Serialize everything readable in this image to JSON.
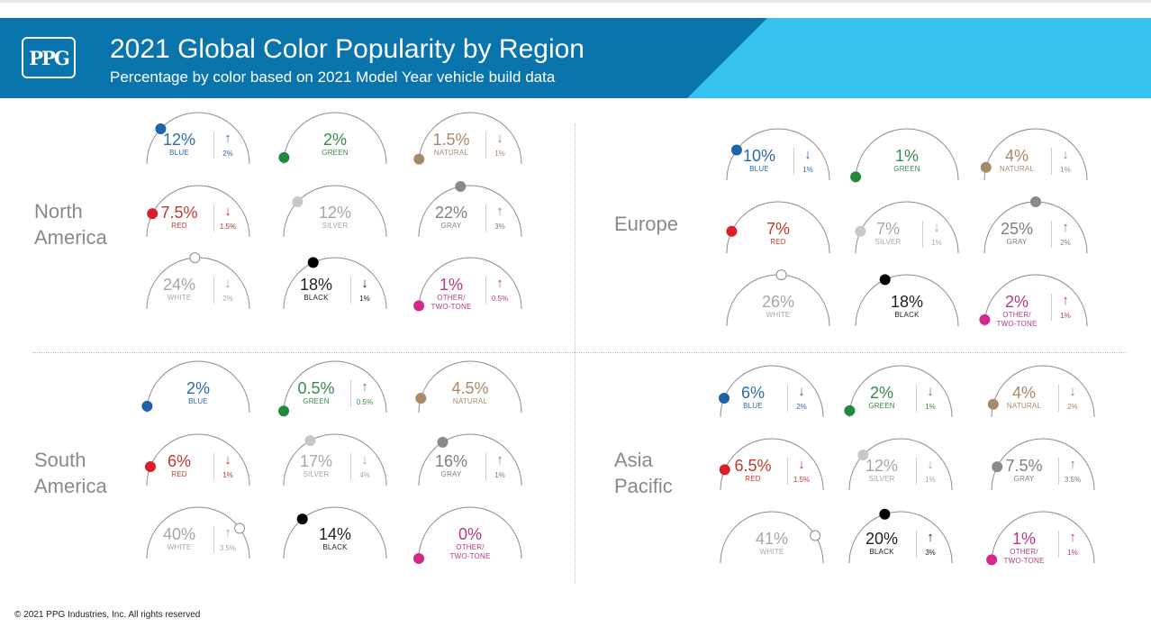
{
  "header": {
    "logo_text": "PPG",
    "title": "2021 Global Color Popularity by Region",
    "subtitle": "Percentage by color based on 2021 Model Year vehicle build data",
    "dark_color": "#0a74ac",
    "light_color": "#36c2ee"
  },
  "footer": {
    "copyright": "© 2021 PPG Industries, Inc. All rights reserved"
  },
  "chart_data": [
    {
      "type": "gauge",
      "region": "North\nAmerica",
      "items": [
        {
          "color": "BLUE",
          "value": 12,
          "value_label": "12%",
          "trend": "↑",
          "change": "2%",
          "hex": "#2f6aa9",
          "dot": "#1f63aa"
        },
        {
          "color": "GREEN",
          "value": 2,
          "value_label": "2%",
          "trend": "",
          "change": "",
          "hex": "#3a8a4e",
          "dot": "#218a3c"
        },
        {
          "color": "NATURAL",
          "value": 1.5,
          "value_label": "1.5%",
          "trend": "↓",
          "change": "1%",
          "hex": "#a88a6a",
          "dot": "#a88a6a"
        },
        {
          "color": "RED",
          "value": 7.5,
          "value_label": "7.5%",
          "trend": "↓",
          "change": "1.5%",
          "hex": "#c0392b",
          "dot": "#d81f2a"
        },
        {
          "color": "SILVER",
          "value": 12,
          "value_label": "12%",
          "trend": "",
          "change": "",
          "hex": "#a6a6a6",
          "dot": "#c7c7c7"
        },
        {
          "color": "GRAY",
          "value": 22,
          "value_label": "22%",
          "trend": "↑",
          "change": "3%",
          "hex": "#7f7f7f",
          "dot": "#8a8a8a"
        },
        {
          "color": "WHITE",
          "value": 24,
          "value_label": "24%",
          "trend": "↓",
          "change": "2%",
          "hex": "#a6a6a6",
          "dot": "#ffffff"
        },
        {
          "color": "BLACK",
          "value": 18,
          "value_label": "18%",
          "trend": "↓",
          "change": "1%",
          "hex": "#222222",
          "dot": "#000000"
        },
        {
          "color": "OTHER/\nTWO-TONE",
          "value": 1,
          "value_label": "1%",
          "trend": "↑",
          "change": "0.5%",
          "hex": "#b03a86",
          "dot": "#d6278a"
        }
      ]
    },
    {
      "type": "gauge",
      "region": "Europe",
      "items": [
        {
          "color": "BLUE",
          "value": 10,
          "value_label": "10%",
          "trend": "↓",
          "change": "1%",
          "hex": "#2f6aa9",
          "dot": "#1f63aa"
        },
        {
          "color": "GREEN",
          "value": 1,
          "value_label": "1%",
          "trend": "",
          "change": "",
          "hex": "#3a8a4e",
          "dot": "#218a3c"
        },
        {
          "color": "NATURAL",
          "value": 4,
          "value_label": "4%",
          "trend": "↓",
          "change": "1%",
          "hex": "#a88a6a",
          "dot": "#a88a6a"
        },
        {
          "color": "RED",
          "value": 7,
          "value_label": "7%",
          "trend": "",
          "change": "",
          "hex": "#c0392b",
          "dot": "#d81f2a"
        },
        {
          "color": "SILVER",
          "value": 7,
          "value_label": "7%",
          "trend": "↓",
          "change": "1%",
          "hex": "#a6a6a6",
          "dot": "#c7c7c7"
        },
        {
          "color": "GRAY",
          "value": 25,
          "value_label": "25%",
          "trend": "↑",
          "change": "2%",
          "hex": "#7f7f7f",
          "dot": "#8a8a8a"
        },
        {
          "color": "WHITE",
          "value": 26,
          "value_label": "26%",
          "trend": "",
          "change": "",
          "hex": "#a6a6a6",
          "dot": "#ffffff"
        },
        {
          "color": "BLACK",
          "value": 18,
          "value_label": "18%",
          "trend": "",
          "change": "",
          "hex": "#222222",
          "dot": "#000000"
        },
        {
          "color": "OTHER/\nTWO-TONE",
          "value": 2,
          "value_label": "2%",
          "trend": "↑",
          "change": "1%",
          "hex": "#b03a86",
          "dot": "#d6278a"
        }
      ]
    },
    {
      "type": "gauge",
      "region": "South\nAmerica",
      "items": [
        {
          "color": "BLUE",
          "value": 2,
          "value_label": "2%",
          "trend": "",
          "change": "",
          "hex": "#2f6aa9",
          "dot": "#1f63aa"
        },
        {
          "color": "GREEN",
          "value": 0.5,
          "value_label": "0.5%",
          "trend": "↑",
          "change": "0.5%",
          "hex": "#3a8a4e",
          "dot": "#218a3c"
        },
        {
          "color": "NATURAL",
          "value": 4.5,
          "value_label": "4.5%",
          "trend": "",
          "change": "",
          "hex": "#a88a6a",
          "dot": "#a88a6a"
        },
        {
          "color": "RED",
          "value": 6,
          "value_label": "6%",
          "trend": "↓",
          "change": "1%",
          "hex": "#c0392b",
          "dot": "#d81f2a"
        },
        {
          "color": "SILVER",
          "value": 17,
          "value_label": "17%",
          "trend": "↓",
          "change": "4%",
          "hex": "#a6a6a6",
          "dot": "#c7c7c7"
        },
        {
          "color": "GRAY",
          "value": 16,
          "value_label": "16%",
          "trend": "↑",
          "change": "1%",
          "hex": "#7f7f7f",
          "dot": "#8a8a8a"
        },
        {
          "color": "WHITE",
          "value": 40,
          "value_label": "40%",
          "trend": "↑",
          "change": "3.5%",
          "hex": "#a6a6a6",
          "dot": "#ffffff"
        },
        {
          "color": "BLACK",
          "value": 14,
          "value_label": "14%",
          "trend": "",
          "change": "",
          "hex": "#222222",
          "dot": "#000000"
        },
        {
          "color": "OTHER/\nTWO-TONE",
          "value": 0,
          "value_label": "0%",
          "trend": "",
          "change": "",
          "hex": "#b03a86",
          "dot": "#d6278a"
        }
      ]
    },
    {
      "type": "gauge",
      "region": "Asia\nPacific",
      "items": [
        {
          "color": "BLUE",
          "value": 6,
          "value_label": "6%",
          "trend": "↓",
          "change": "2%",
          "hex": "#2f6aa9",
          "dot": "#1f63aa"
        },
        {
          "color": "GREEN",
          "value": 2,
          "value_label": "2%",
          "trend": "↓",
          "change": "1%",
          "hex": "#3a8a4e",
          "dot": "#218a3c"
        },
        {
          "color": "NATURAL",
          "value": 4,
          "value_label": "4%",
          "trend": "↓",
          "change": "2%",
          "hex": "#a88a6a",
          "dot": "#a88a6a"
        },
        {
          "color": "RED",
          "value": 6.5,
          "value_label": "6.5%",
          "trend": "↓",
          "change": "1.5%",
          "hex": "#c0392b",
          "dot": "#d81f2a"
        },
        {
          "color": "SILVER",
          "value": 12,
          "value_label": "12%",
          "trend": "↓",
          "change": "1%",
          "hex": "#a6a6a6",
          "dot": "#c7c7c7"
        },
        {
          "color": "GRAY",
          "value": 7.5,
          "value_label": "7.5%",
          "trend": "↑",
          "change": "3.5%",
          "hex": "#7f7f7f",
          "dot": "#8a8a8a"
        },
        {
          "color": "WHITE",
          "value": 41,
          "value_label": "41%",
          "trend": "",
          "change": "",
          "hex": "#a6a6a6",
          "dot": "#ffffff"
        },
        {
          "color": "BLACK",
          "value": 20,
          "value_label": "20%",
          "trend": "↑",
          "change": "3%",
          "hex": "#222222",
          "dot": "#000000"
        },
        {
          "color": "OTHER/\nTWO-TONE",
          "value": 1,
          "value_label": "1%",
          "trend": "↑",
          "change": "1%",
          "hex": "#b03a86",
          "dot": "#d6278a"
        }
      ]
    }
  ]
}
